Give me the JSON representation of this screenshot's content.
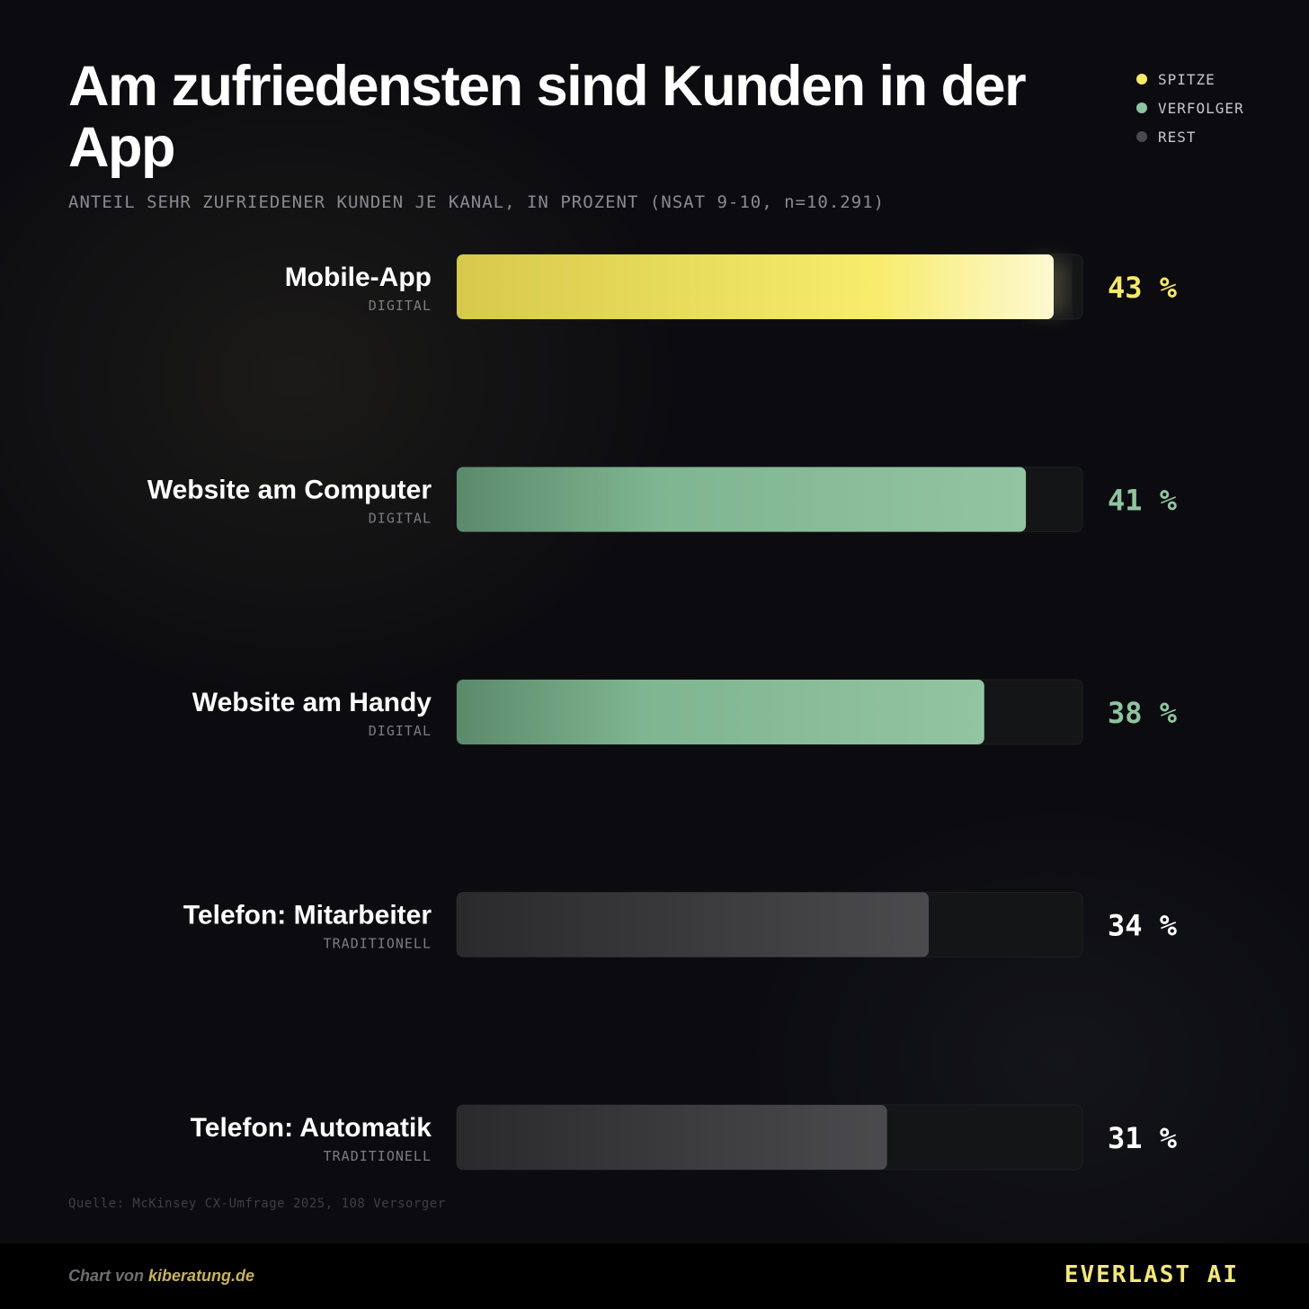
{
  "title": "Am zufriedensten sind Kunden in der App",
  "subtitle": "ANTEIL SEHR ZUFRIEDENER KUNDEN JE KANAL, IN PROZENT (NSAT 9-10, n=10.291)",
  "legend": [
    {
      "label": "SPITZE",
      "color": "#f5e96a"
    },
    {
      "label": "VERFOLGER",
      "color": "#8fc4a0"
    },
    {
      "label": "REST",
      "color": "#4a4a4e"
    }
  ],
  "chart_data": {
    "type": "bar",
    "orientation": "horizontal",
    "title": "Am zufriedensten sind Kunden in der App",
    "subtitle": "ANTEIL SEHR ZUFRIEDENER KUNDEN JE KANAL, IN PROZENT (NSAT 9-10, n=10.291)",
    "xlim": [
      0,
      45
    ],
    "grid": false,
    "legend_position": "top-right",
    "unit": "%",
    "categories": [
      "Mobile-App",
      "Website am Computer",
      "Website am Handy",
      "Telefon: Mitarbeiter",
      "Telefon: Automatik"
    ],
    "groups": [
      "DIGITAL",
      "DIGITAL",
      "DIGITAL",
      "TRADITIONELL",
      "TRADITIONELL"
    ],
    "values": [
      43,
      41,
      38,
      34,
      31
    ],
    "value_labels": [
      "43 %",
      "41 %",
      "38 %",
      "34 %",
      "31 %"
    ],
    "tiers": [
      "SPITZE",
      "VERFOLGER",
      "VERFOLGER",
      "REST",
      "REST"
    ]
  },
  "colors": {
    "spitze": "#f5e96a",
    "verfolger": "#8fc4a0",
    "rest": "#4a4a4e",
    "track": "#131517",
    "value_rest": "#ffffff"
  },
  "source": "Quelle: McKinsey CX-Umfrage 2025, 108 Versorger",
  "footer": {
    "credit_prefix": "Chart von",
    "credit_site": "kiberatung.de",
    "brand": "EVERLAST AI"
  }
}
